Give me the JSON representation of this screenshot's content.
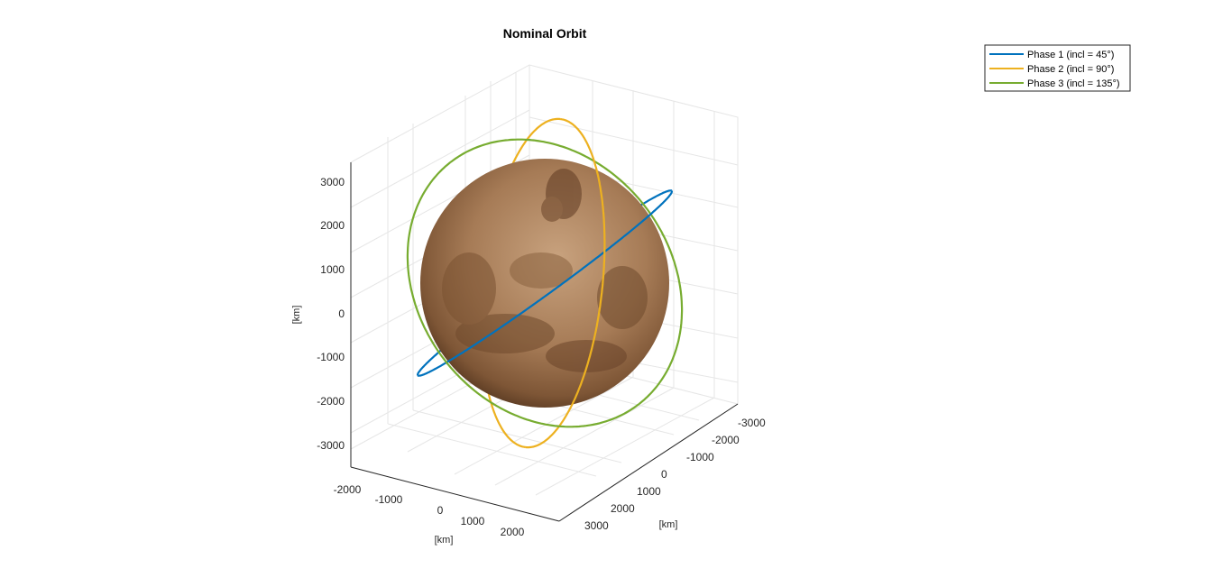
{
  "chart_data": {
    "type": "line",
    "title": "Nominal Orbit",
    "xlabel": "[km]",
    "ylabel": "[km]",
    "zlabel": "[km]",
    "x_ticks": [
      "-2000",
      "-1000",
      "0",
      "1000",
      "2000"
    ],
    "y_ticks": [
      "-3000",
      "-2000",
      "-1000",
      "0",
      "1000",
      "2000",
      "3000"
    ],
    "z_ticks": [
      "-3000",
      "-2000",
      "-1000",
      "0",
      "1000",
      "2000",
      "3000"
    ],
    "grid": true,
    "legend_position": "top-right",
    "body_radius_km": 2575,
    "series": [
      {
        "name": "Phase 1 (incl = 45°)",
        "color": "#0072BD",
        "inclination_deg": 45
      },
      {
        "name": "Phase 2 (incl = 90°)",
        "color": "#EDB120",
        "inclination_deg": 90
      },
      {
        "name": "Phase 3 (incl = 135°)",
        "color": "#77AC30",
        "inclination_deg": 135
      }
    ]
  }
}
